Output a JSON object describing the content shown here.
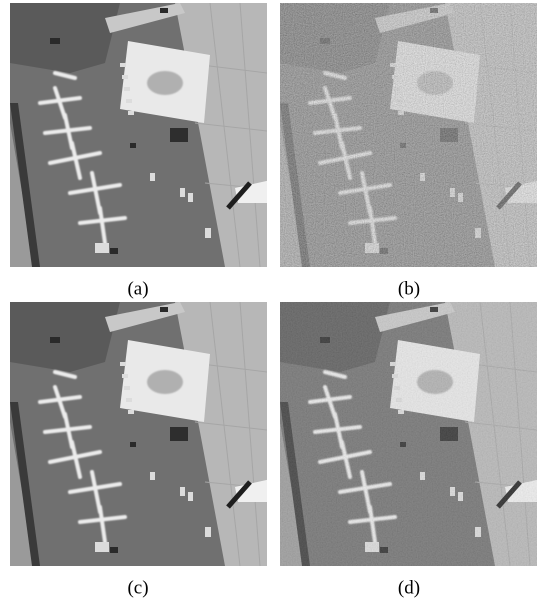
{
  "panels": [
    {
      "caption": "(a)"
    },
    {
      "caption": "(b)"
    },
    {
      "caption": "(c)"
    },
    {
      "caption": "(d)"
    }
  ]
}
